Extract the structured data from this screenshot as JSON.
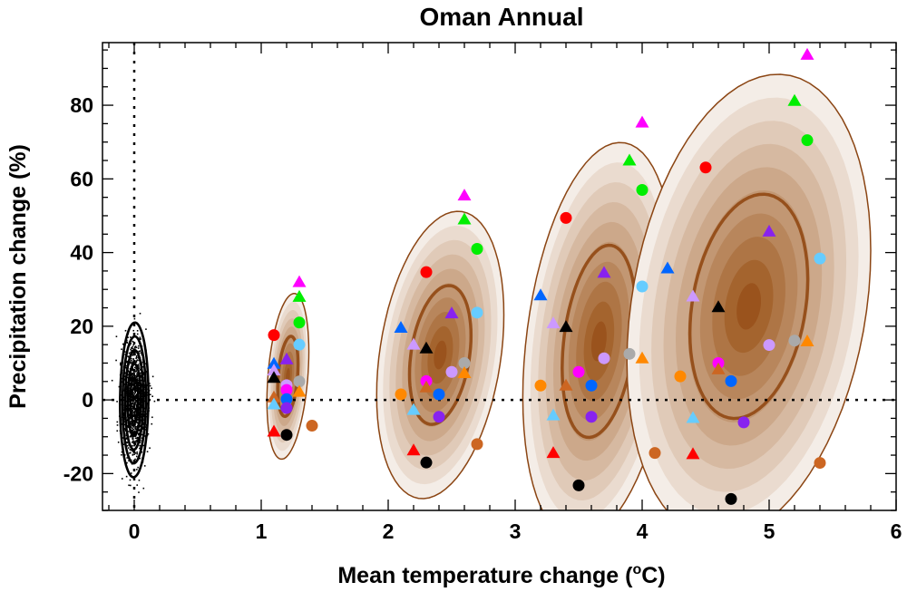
{
  "chart_data": {
    "type": "scatter",
    "title": "Oman Annual",
    "xlabel": "Mean temperature change (",
    "xlabel_sup": "o",
    "xlabel_end": "C)",
    "ylabel": "Precipitation change (%)",
    "xlim": [
      -0.25,
      6
    ],
    "ylim": [
      -30,
      97
    ],
    "xticks": [
      0,
      1,
      2,
      3,
      4,
      5,
      6
    ],
    "yticks": [
      -20,
      0,
      20,
      40,
      60,
      80
    ],
    "reference_lines": {
      "x": 0,
      "y": 0,
      "style": "dotted"
    },
    "colors": {
      "red": "#ff0000",
      "magenta": "#ff00ff",
      "green": "#00ee00",
      "lightblue": "#66ccff",
      "blue": "#0066ff",
      "purple": "#8822ee",
      "lavender": "#cc99ff",
      "black": "#000000",
      "gray": "#aaaaaa",
      "orange": "#ff8800",
      "brown": "#cc6622"
    },
    "control": {
      "mean": [
        0,
        0
      ],
      "sd": [
        0.05,
        7.5
      ],
      "ellipse_center": [
        0,
        0
      ]
    },
    "distributions": [
      {
        "center": [
          1.21,
          6.4
        ],
        "sd": [
          0.055,
          7.5
        ],
        "rho": 0.3
      },
      {
        "center": [
          2.41,
          12.2
        ],
        "sd": [
          0.167,
          13
        ],
        "rho": 0.28
      },
      {
        "center": [
          3.66,
          15.9
        ],
        "sd": [
          0.2,
          18
        ],
        "rho": 0.28
      },
      {
        "center": [
          4.84,
          25.4
        ],
        "sd": [
          0.32,
          21
        ],
        "rho": 0.24
      }
    ],
    "points": [
      {
        "x": 1.3,
        "y": 32,
        "c": "magenta",
        "m": "tri"
      },
      {
        "x": 1.3,
        "y": 28,
        "c": "green",
        "m": "tri"
      },
      {
        "x": 1.3,
        "y": 21,
        "c": "green",
        "m": "circle"
      },
      {
        "x": 1.1,
        "y": 17.6,
        "c": "red",
        "m": "circle"
      },
      {
        "x": 1.3,
        "y": 15,
        "c": "lightblue",
        "m": "circle"
      },
      {
        "x": 1.1,
        "y": 9.8,
        "c": "blue",
        "m": "tri"
      },
      {
        "x": 1.2,
        "y": 11,
        "c": "purple",
        "m": "tri"
      },
      {
        "x": 1.1,
        "y": 8,
        "c": "lavender",
        "m": "tri"
      },
      {
        "x": 1.1,
        "y": 6,
        "c": "black",
        "m": "tri"
      },
      {
        "x": 1.3,
        "y": 5,
        "c": "gray",
        "m": "circle"
      },
      {
        "x": 1.2,
        "y": 4,
        "c": "lavender",
        "m": "circle"
      },
      {
        "x": 1.2,
        "y": 2.7,
        "c": "magenta",
        "m": "circle"
      },
      {
        "x": 1.3,
        "y": 2.2,
        "c": "orange",
        "m": "tri"
      },
      {
        "x": 1.1,
        "y": 0.7,
        "c": "brown",
        "m": "tri"
      },
      {
        "x": 1.2,
        "y": 0.2,
        "c": "blue",
        "m": "circle"
      },
      {
        "x": 1.1,
        "y": -1.2,
        "c": "lightblue",
        "m": "tri"
      },
      {
        "x": 1.2,
        "y": -2.2,
        "c": "purple",
        "m": "circle"
      },
      {
        "x": 1.4,
        "y": -7,
        "c": "brown",
        "m": "circle"
      },
      {
        "x": 1.1,
        "y": -8.6,
        "c": "red",
        "m": "tri"
      },
      {
        "x": 1.2,
        "y": -9.5,
        "c": "black",
        "m": "circle"
      },
      {
        "x": 2.6,
        "y": 55.5,
        "c": "magenta",
        "m": "tri"
      },
      {
        "x": 2.6,
        "y": 49,
        "c": "green",
        "m": "tri"
      },
      {
        "x": 2.7,
        "y": 41,
        "c": "green",
        "m": "circle"
      },
      {
        "x": 2.3,
        "y": 34.7,
        "c": "red",
        "m": "circle"
      },
      {
        "x": 2.7,
        "y": 23.7,
        "c": "lightblue",
        "m": "circle"
      },
      {
        "x": 2.5,
        "y": 23.5,
        "c": "purple",
        "m": "tri"
      },
      {
        "x": 2.1,
        "y": 19.6,
        "c": "blue",
        "m": "tri"
      },
      {
        "x": 2.2,
        "y": 15,
        "c": "lavender",
        "m": "tri"
      },
      {
        "x": 2.3,
        "y": 14,
        "c": "black",
        "m": "tri"
      },
      {
        "x": 2.6,
        "y": 10,
        "c": "gray",
        "m": "circle"
      },
      {
        "x": 2.5,
        "y": 7.6,
        "c": "lavender",
        "m": "circle"
      },
      {
        "x": 2.6,
        "y": 7.3,
        "c": "orange",
        "m": "tri"
      },
      {
        "x": 2.3,
        "y": 5.1,
        "c": "magenta",
        "m": "circle"
      },
      {
        "x": 2.3,
        "y": 3.4,
        "c": "brown",
        "m": "tri"
      },
      {
        "x": 2.1,
        "y": 1.5,
        "c": "orange",
        "m": "circle"
      },
      {
        "x": 2.4,
        "y": 1.5,
        "c": "blue",
        "m": "circle"
      },
      {
        "x": 2.2,
        "y": -2.7,
        "c": "lightblue",
        "m": "tri"
      },
      {
        "x": 2.4,
        "y": -4.6,
        "c": "purple",
        "m": "circle"
      },
      {
        "x": 2.7,
        "y": -12,
        "c": "brown",
        "m": "circle"
      },
      {
        "x": 2.2,
        "y": -13.7,
        "c": "red",
        "m": "tri"
      },
      {
        "x": 2.3,
        "y": -17,
        "c": "black",
        "m": "circle"
      },
      {
        "x": 4.0,
        "y": 75.3,
        "c": "magenta",
        "m": "tri"
      },
      {
        "x": 3.9,
        "y": 65,
        "c": "green",
        "m": "tri"
      },
      {
        "x": 4.0,
        "y": 57,
        "c": "green",
        "m": "circle"
      },
      {
        "x": 3.4,
        "y": 49.4,
        "c": "red",
        "m": "circle"
      },
      {
        "x": 3.7,
        "y": 34.5,
        "c": "purple",
        "m": "tri"
      },
      {
        "x": 4.0,
        "y": 30.8,
        "c": "lightblue",
        "m": "circle"
      },
      {
        "x": 3.2,
        "y": 28.4,
        "c": "blue",
        "m": "tri"
      },
      {
        "x": 3.3,
        "y": 20.8,
        "c": "lavender",
        "m": "tri"
      },
      {
        "x": 3.4,
        "y": 19.8,
        "c": "black",
        "m": "tri"
      },
      {
        "x": 3.9,
        "y": 12.5,
        "c": "gray",
        "m": "circle"
      },
      {
        "x": 3.7,
        "y": 11.3,
        "c": "lavender",
        "m": "circle"
      },
      {
        "x": 4.0,
        "y": 11.3,
        "c": "orange",
        "m": "tri"
      },
      {
        "x": 3.5,
        "y": 7.6,
        "c": "magenta",
        "m": "circle"
      },
      {
        "x": 3.4,
        "y": 3.9,
        "c": "brown",
        "m": "tri"
      },
      {
        "x": 3.2,
        "y": 3.9,
        "c": "orange",
        "m": "circle"
      },
      {
        "x": 3.6,
        "y": 3.9,
        "c": "blue",
        "m": "circle"
      },
      {
        "x": 3.3,
        "y": -4.2,
        "c": "lightblue",
        "m": "tri"
      },
      {
        "x": 3.6,
        "y": -4.6,
        "c": "purple",
        "m": "circle"
      },
      {
        "x": 4.1,
        "y": -14.4,
        "c": "brown",
        "m": "circle"
      },
      {
        "x": 3.3,
        "y": -14.4,
        "c": "red",
        "m": "tri"
      },
      {
        "x": 3.5,
        "y": -23.2,
        "c": "black",
        "m": "circle"
      },
      {
        "x": 5.3,
        "y": 93.7,
        "c": "magenta",
        "m": "tri"
      },
      {
        "x": 5.2,
        "y": 81.2,
        "c": "green",
        "m": "tri"
      },
      {
        "x": 5.3,
        "y": 70.5,
        "c": "green",
        "m": "circle"
      },
      {
        "x": 4.5,
        "y": 63.1,
        "c": "red",
        "m": "circle"
      },
      {
        "x": 4.2,
        "y": 35.7,
        "c": "blue",
        "m": "tri"
      },
      {
        "x": 5.0,
        "y": 45.7,
        "c": "purple",
        "m": "tri"
      },
      {
        "x": 5.4,
        "y": 38.4,
        "c": "lightblue",
        "m": "circle"
      },
      {
        "x": 4.4,
        "y": 28.1,
        "c": "lavender",
        "m": "tri"
      },
      {
        "x": 4.6,
        "y": 25.2,
        "c": "black",
        "m": "tri"
      },
      {
        "x": 5.0,
        "y": 14.9,
        "c": "lavender",
        "m": "circle"
      },
      {
        "x": 5.2,
        "y": 16.1,
        "c": "gray",
        "m": "circle"
      },
      {
        "x": 5.3,
        "y": 15.9,
        "c": "orange",
        "m": "tri"
      },
      {
        "x": 4.6,
        "y": 10,
        "c": "magenta",
        "m": "circle"
      },
      {
        "x": 4.6,
        "y": 8.3,
        "c": "brown",
        "m": "tri"
      },
      {
        "x": 4.3,
        "y": 6.4,
        "c": "orange",
        "m": "circle"
      },
      {
        "x": 4.7,
        "y": 5.1,
        "c": "blue",
        "m": "circle"
      },
      {
        "x": 4.4,
        "y": -4.9,
        "c": "lightblue",
        "m": "tri"
      },
      {
        "x": 4.8,
        "y": -6.1,
        "c": "purple",
        "m": "circle"
      },
      {
        "x": 4.4,
        "y": -14.7,
        "c": "red",
        "m": "tri"
      },
      {
        "x": 5.4,
        "y": -17.1,
        "c": "brown",
        "m": "circle"
      },
      {
        "x": 4.7,
        "y": -26.9,
        "c": "black",
        "m": "circle"
      }
    ]
  }
}
